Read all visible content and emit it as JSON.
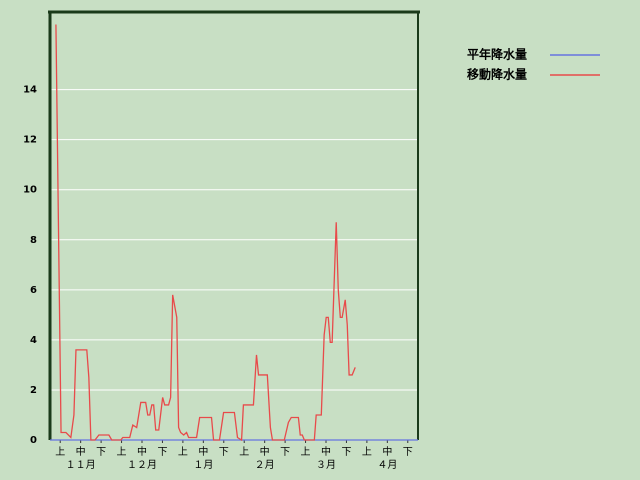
{
  "chart_data": {
    "type": "line",
    "xlim": [
      0,
      18
    ],
    "ylim": [
      0,
      17.1
    ],
    "yticks": [
      0,
      2,
      4,
      6,
      8,
      10,
      12,
      14
    ],
    "xticks": [
      {
        "value": 0.5,
        "label": "上"
      },
      {
        "value": 1.5,
        "label": "中"
      },
      {
        "value": 2.5,
        "label": "下"
      },
      {
        "value": 3.5,
        "label": "上"
      },
      {
        "value": 4.5,
        "label": "中"
      },
      {
        "value": 5.5,
        "label": "下"
      },
      {
        "value": 6.5,
        "label": "上"
      },
      {
        "value": 7.5,
        "label": "中"
      },
      {
        "value": 8.5,
        "label": "下"
      },
      {
        "value": 9.5,
        "label": "上"
      },
      {
        "value": 10.5,
        "label": "中"
      },
      {
        "value": 11.5,
        "label": "下"
      },
      {
        "value": 12.5,
        "label": "上"
      },
      {
        "value": 13.5,
        "label": "中"
      },
      {
        "value": 14.5,
        "label": "下"
      },
      {
        "value": 15.5,
        "label": "上"
      },
      {
        "value": 16.5,
        "label": "中"
      },
      {
        "value": 17.5,
        "label": "下"
      }
    ],
    "month_ticks": [
      {
        "value": 1.5,
        "label": "１１月"
      },
      {
        "value": 4.5,
        "label": "１２月"
      },
      {
        "value": 7.5,
        "label": "１月"
      },
      {
        "value": 10.5,
        "label": "２月"
      },
      {
        "value": 13.5,
        "label": "３月"
      },
      {
        "value": 16.5,
        "label": "４月"
      }
    ],
    "grid": true,
    "series": [
      {
        "name": "平年降水量",
        "color": "#6674e0",
        "x": [
          0,
          18
        ],
        "values": [
          0,
          0
        ]
      },
      {
        "name": "移動降水量",
        "color": "#e84a4a",
        "x": [
          0.29,
          0.54,
          0.78,
          1.02,
          1.17,
          1.27,
          1.8,
          1.9,
          2.0,
          2.2,
          2.39,
          2.88,
          3.02,
          3.46,
          3.56,
          3.9,
          4.05,
          4.24,
          4.44,
          4.68,
          4.78,
          4.88,
          4.98,
          5.07,
          5.17,
          5.32,
          5.51,
          5.61,
          5.8,
          5.9,
          6.0,
          6.2,
          6.29,
          6.39,
          6.54,
          6.68,
          6.78,
          7.17,
          7.32,
          7.9,
          8.0,
          8.29,
          8.49,
          9.02,
          9.17,
          9.37,
          9.46,
          9.95,
          10.1,
          10.2,
          10.63,
          10.78,
          10.88,
          11.46,
          11.66,
          11.8,
          12.15,
          12.24,
          12.34,
          12.44,
          12.93,
          13.02,
          13.27,
          13.41,
          13.51,
          13.61,
          13.71,
          13.8,
          14.0,
          14.1,
          14.2,
          14.29,
          14.44,
          14.54,
          14.63,
          14.78,
          14.93
        ],
        "values": [
          16.6,
          0.3,
          0.3,
          0.1,
          1,
          3.6,
          3.6,
          2.5,
          0,
          0,
          0.2,
          0.2,
          0,
          0,
          0.1,
          0.1,
          0.6,
          0.5,
          1.5,
          1.5,
          1,
          1,
          1.4,
          1.4,
          0.4,
          0.4,
          1.7,
          1.4,
          1.4,
          1.7,
          5.8,
          4.9,
          0.5,
          0.3,
          0.2,
          0.3,
          0.1,
          0.1,
          0.9,
          0.9,
          0,
          0,
          1.1,
          1.1,
          0.1,
          0,
          1.4,
          1.4,
          3.4,
          2.6,
          2.6,
          0.5,
          0,
          0,
          0.7,
          0.9,
          0.9,
          0.2,
          0.2,
          0,
          0,
          1,
          1,
          4.2,
          4.9,
          4.9,
          3.9,
          3.9,
          8.7,
          6,
          4.9,
          4.9,
          5.6,
          4.6,
          2.6,
          2.6,
          2.9
        ]
      }
    ]
  }
}
